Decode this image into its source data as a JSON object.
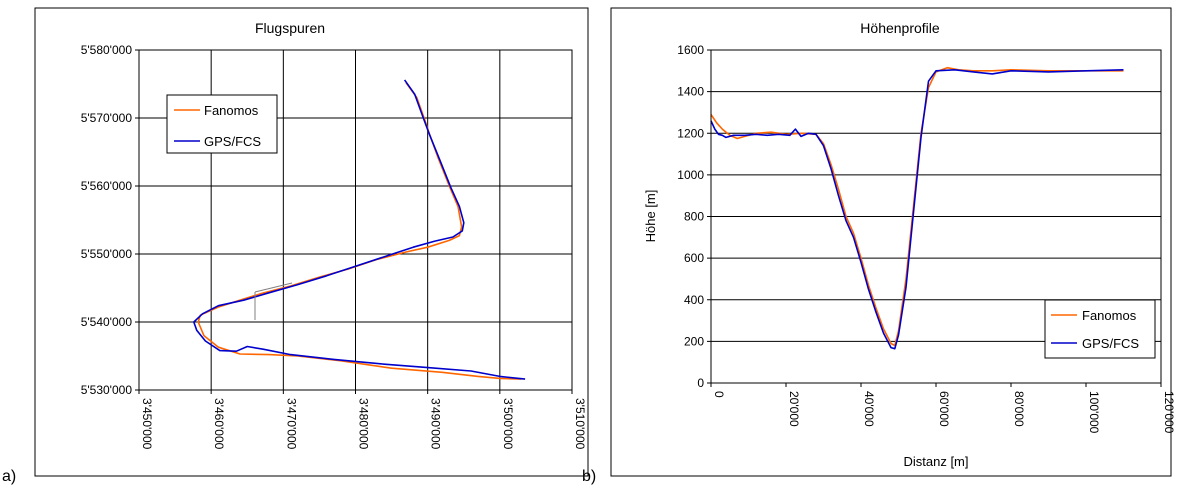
{
  "panel_labels": [
    "a)",
    "b)"
  ],
  "colors": {
    "fanomos": "#FF6600",
    "gps": "#0000CC",
    "grid": "#000000",
    "marker": "#808080"
  },
  "chart_data": [
    {
      "type": "line",
      "title": "Flugspuren",
      "xlabel": "",
      "ylabel": "",
      "xlim": [
        3450000,
        3510000
      ],
      "ylim": [
        5530000,
        5580000
      ],
      "x_ticks": [
        3450000,
        3460000,
        3470000,
        3480000,
        3490000,
        3500000,
        3510000
      ],
      "x_tick_labels": [
        "3'450'000",
        "3'460'000",
        "3'470'000",
        "3'480'000",
        "3'490'000",
        "3'500'000",
        "3'510'000"
      ],
      "y_ticks": [
        5530000,
        5540000,
        5550000,
        5560000,
        5570000,
        5580000
      ],
      "y_tick_labels": [
        "5'530'000",
        "5'540'000",
        "5'550'000",
        "5'560'000",
        "5'570'000",
        "5'580'000"
      ],
      "grid": true,
      "legend_position": "upper-left",
      "series": [
        {
          "name": "Fanomos",
          "color": "#FF6600",
          "x": [
            3487000,
            3488500,
            3489500,
            3490300,
            3491500,
            3493000,
            3494200,
            3494700,
            3494400,
            3493000,
            3490000,
            3487000,
            3483000,
            3479000,
            3475000,
            3471000,
            3467000,
            3464000,
            3461000,
            3458500,
            3458200,
            3459000,
            3461000,
            3464000,
            3468000,
            3472000,
            3478000,
            3485000,
            3492000,
            3497000,
            3500000,
            3503000
          ],
          "y": [
            5575200,
            5573000,
            5570000,
            5567500,
            5564000,
            5560000,
            5557000,
            5554000,
            5552700,
            5552000,
            5551000,
            5550300,
            5549200,
            5547800,
            5546600,
            5545300,
            5544200,
            5543200,
            5542200,
            5541000,
            5540000,
            5538000,
            5536300,
            5535300,
            5535200,
            5535000,
            5534300,
            5533200,
            5532600,
            5532000,
            5531700,
            5531600
          ]
        },
        {
          "name": "GPS/FCS",
          "color": "#0000CC",
          "x": [
            3486800,
            3488200,
            3489300,
            3490200,
            3491700,
            3493200,
            3494400,
            3495000,
            3494800,
            3493500,
            3491000,
            3488000,
            3484000,
            3480000,
            3476000,
            3472000,
            3468000,
            3464500,
            3461000,
            3458800,
            3457600,
            3458000,
            3459200,
            3461200,
            3463500,
            3465000,
            3467200,
            3471000,
            3477000,
            3484000,
            3490000,
            3496000,
            3500000,
            3503500
          ],
          "y": [
            5575600,
            5573500,
            5570300,
            5567700,
            5563800,
            5559800,
            5557000,
            5554600,
            5553400,
            5552500,
            5551900,
            5551000,
            5549600,
            5548200,
            5546800,
            5545500,
            5544300,
            5543200,
            5542400,
            5541200,
            5540000,
            5538800,
            5537200,
            5535800,
            5535700,
            5536400,
            5536000,
            5535200,
            5534500,
            5533800,
            5533300,
            5532800,
            5532000,
            5531600
          ]
        }
      ]
    },
    {
      "type": "line",
      "title": "Höhenprofile",
      "xlabel": "Distanz [m]",
      "ylabel": "Höhe [m]",
      "xlim": [
        0,
        120000
      ],
      "ylim": [
        0,
        1600
      ],
      "x_ticks": [
        0,
        20000,
        40000,
        60000,
        80000,
        100000,
        120000
      ],
      "x_tick_labels": [
        "0",
        "20'000",
        "40'000",
        "60'000",
        "80'000",
        "100'000",
        "120'000"
      ],
      "y_ticks": [
        0,
        200,
        400,
        600,
        800,
        1000,
        1200,
        1400,
        1600
      ],
      "y_tick_labels": [
        "0",
        "200",
        "400",
        "600",
        "800",
        "1000",
        "1200",
        "1400",
        "1600"
      ],
      "grid": true,
      "legend_position": "lower-right",
      "series": [
        {
          "name": "Fanomos",
          "color": "#FF6600",
          "x": [
            0,
            1500,
            3000,
            5000,
            7000,
            9000,
            12000,
            16000,
            20000,
            24000,
            28000,
            30000,
            32000,
            34000,
            36000,
            38000,
            40000,
            42000,
            44000,
            46000,
            48000,
            49000,
            50000,
            52000,
            54000,
            56000,
            58000,
            60000,
            63000,
            66000,
            70000,
            75000,
            80000,
            90000,
            100000,
            110000
          ],
          "y": [
            1290,
            1250,
            1220,
            1190,
            1175,
            1185,
            1200,
            1205,
            1195,
            1200,
            1195,
            1150,
            1050,
            930,
            800,
            720,
            600,
            470,
            360,
            260,
            190,
            180,
            250,
            500,
            850,
            1200,
            1420,
            1495,
            1515,
            1505,
            1500,
            1500,
            1505,
            1500,
            1500,
            1500
          ]
        },
        {
          "name": "GPS/FCS",
          "color": "#0000CC",
          "x": [
            0,
            1000,
            2000,
            3000,
            4000,
            6000,
            9000,
            12000,
            15000,
            18000,
            21000,
            22500,
            24000,
            26000,
            28000,
            30000,
            32000,
            34000,
            36000,
            38000,
            40000,
            42000,
            44000,
            46000,
            48000,
            49000,
            50000,
            52000,
            54000,
            56000,
            58000,
            60000,
            65000,
            70000,
            75000,
            80000,
            90000,
            100000,
            110000
          ],
          "y": [
            1260,
            1220,
            1195,
            1190,
            1180,
            1190,
            1190,
            1195,
            1190,
            1195,
            1190,
            1220,
            1185,
            1200,
            1195,
            1140,
            1030,
            900,
            780,
            700,
            580,
            450,
            340,
            240,
            170,
            165,
            230,
            460,
            820,
            1180,
            1450,
            1500,
            1505,
            1495,
            1485,
            1500,
            1495,
            1500,
            1505
          ]
        }
      ]
    }
  ]
}
